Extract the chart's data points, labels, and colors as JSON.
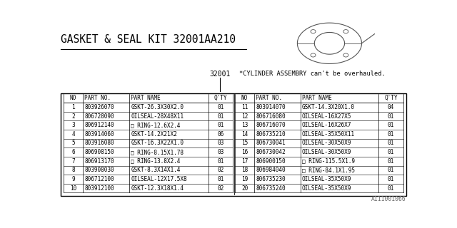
{
  "title": "GASKET & SEAL KIT 32001AA210",
  "part_number_label": "32001",
  "note": "*CYLINDER ASSEMBRY can't be overhauled.",
  "footer": "A111001066",
  "bg_color": "#ffffff",
  "border_color": "#000000",
  "headers": [
    "NO",
    "PART NO.",
    "PART NAME",
    "Q'TY"
  ],
  "left_rows": [
    [
      "1",
      "803926070",
      "GSKT-26.3X30X2.0",
      "01"
    ],
    [
      "2",
      "806728090",
      "OILSEAL-28X48X11",
      "01"
    ],
    [
      "3",
      "806912140",
      "□ RING-12.6X2.4",
      "01"
    ],
    [
      "4",
      "803914060",
      "GSKT-14.2X21X2",
      "06"
    ],
    [
      "5",
      "803916080",
      "GSKT-16.3X22X1.0",
      "03"
    ],
    [
      "6",
      "806908150",
      "□ RING-8.15X1.78",
      "03"
    ],
    [
      "7",
      "806913170",
      "□ RING-13.8X2.4",
      "01"
    ],
    [
      "8",
      "803908030",
      "GSKT-8.3X14X1.4",
      "02"
    ],
    [
      "9",
      "806712100",
      "OILSEAL-12X17.5X8",
      "01"
    ],
    [
      "10",
      "803912100",
      "GSKT-12.3X18X1.4",
      "02"
    ]
  ],
  "right_rows": [
    [
      "11",
      "803914070",
      "GSKT-14.3X20X1.0",
      "04"
    ],
    [
      "12",
      "806716080",
      "OILSEAL-16X27X5",
      "01"
    ],
    [
      "13",
      "806716070",
      "OILSEAL-16X26X7",
      "01"
    ],
    [
      "14",
      "806735210",
      "OILSEAL-35X50X11",
      "01"
    ],
    [
      "15",
      "806730041",
      "OILSEAL-30X50X9",
      "01"
    ],
    [
      "16",
      "806730042",
      "OILSEAL-30X50X9",
      "01"
    ],
    [
      "17",
      "806900150",
      "□ RING-115.5X1.9",
      "01"
    ],
    [
      "18",
      "806984040",
      "□ RING-84.1X1.95",
      "01"
    ],
    [
      "19",
      "806735230",
      "OILSEAL-35X50X9",
      "01"
    ],
    [
      "20",
      "806735240",
      "OILSEAL-35X50X9",
      "01"
    ]
  ]
}
